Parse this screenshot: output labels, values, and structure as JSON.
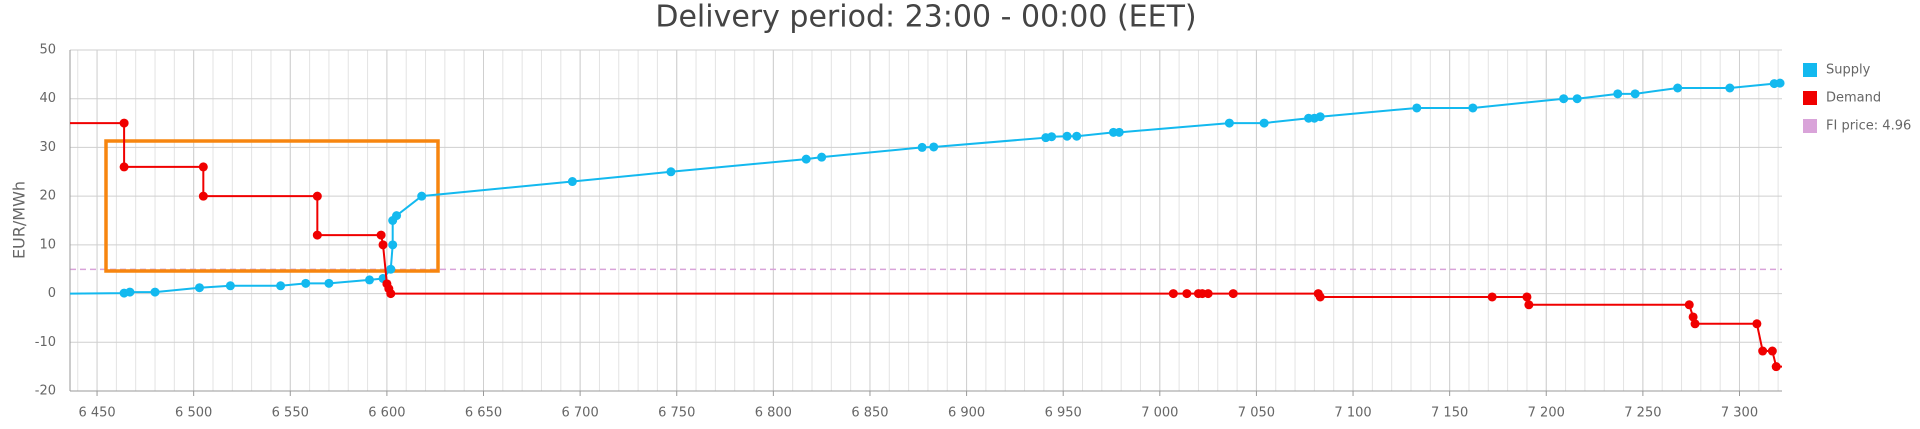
{
  "chart_data": {
    "type": "line",
    "title": "Delivery period: 23:00 - 00:00 (EET)",
    "y_label": "EUR/MWh",
    "xlim": [
      6436,
      7322
    ],
    "ylim": [
      -20,
      50
    ],
    "xticks": [
      {
        "value": 6450,
        "label": "6 450"
      },
      {
        "value": 6500,
        "label": "6 500"
      },
      {
        "value": 6550,
        "label": "6 550"
      },
      {
        "value": 6600,
        "label": "6 600"
      },
      {
        "value": 6650,
        "label": "6 650"
      },
      {
        "value": 6700,
        "label": "6 700"
      },
      {
        "value": 6750,
        "label": "6 750"
      },
      {
        "value": 6800,
        "label": "6 800"
      },
      {
        "value": 6850,
        "label": "6 850"
      },
      {
        "value": 6900,
        "label": "6 900"
      },
      {
        "value": 6950,
        "label": "6 950"
      },
      {
        "value": 7000,
        "label": "7 000"
      },
      {
        "value": 7050,
        "label": "7 050"
      },
      {
        "value": 7100,
        "label": "7 100"
      },
      {
        "value": 7150,
        "label": "7 150"
      },
      {
        "value": 7200,
        "label": "7 200"
      },
      {
        "value": 7250,
        "label": "7 250"
      },
      {
        "value": 7300,
        "label": "7 300"
      }
    ],
    "yticks": [
      -20,
      -10,
      0,
      10,
      20,
      30,
      40,
      50
    ],
    "grid": true,
    "series": [
      {
        "name": "Supply",
        "color": "#13b9ef",
        "x": [
          6436,
          6464,
          6467,
          6480,
          6503,
          6519,
          6545,
          6558,
          6570,
          6591,
          6598,
          6602,
          6603,
          6603,
          6605,
          6618,
          6696,
          6747,
          6817,
          6825,
          6877,
          6883,
          6941,
          6944,
          6952,
          6957,
          6976,
          6979,
          7036,
          7054,
          7077,
          7080,
          7083,
          7133,
          7162,
          7209,
          7216,
          7237,
          7246,
          7268,
          7295,
          7318,
          7321
        ],
        "values": [
          0,
          0.1,
          0.3,
          0.3,
          1.2,
          1.6,
          1.6,
          2.1,
          2.1,
          2.8,
          3.1,
          5,
          10,
          15,
          16,
          20,
          23,
          25,
          27.6,
          28,
          30,
          30.1,
          32,
          32.2,
          32.3,
          32.3,
          33.1,
          33.1,
          35,
          35,
          36,
          36,
          36.3,
          38.1,
          38.1,
          40,
          40,
          41,
          41,
          42.2,
          42.2,
          43.1,
          43.2
        ]
      },
      {
        "name": "Demand",
        "color": "#f00000",
        "x": [
          6436,
          6464,
          6464,
          6505,
          6505,
          6564,
          6564,
          6597,
          6598,
          6600,
          6601,
          6602,
          7007,
          7014,
          7020,
          7022,
          7025,
          7038,
          7082,
          7083,
          7172,
          7190,
          7191,
          7274,
          7276,
          7277,
          7309,
          7312,
          7317,
          7319,
          7322
        ],
        "values": [
          35,
          35,
          26,
          26,
          20,
          20,
          12,
          12,
          10,
          2,
          1,
          0,
          0,
          0,
          0,
          0,
          0,
          0,
          0,
          -0.7,
          -0.7,
          -0.7,
          -2.3,
          -2.3,
          -4.8,
          -6.2,
          -6.2,
          -11.8,
          -11.8,
          -15,
          -15
        ]
      }
    ],
    "reference_line": {
      "name": "FI price: 4.96",
      "value": 4.96,
      "color": "#d9a3d9"
    }
  }
}
